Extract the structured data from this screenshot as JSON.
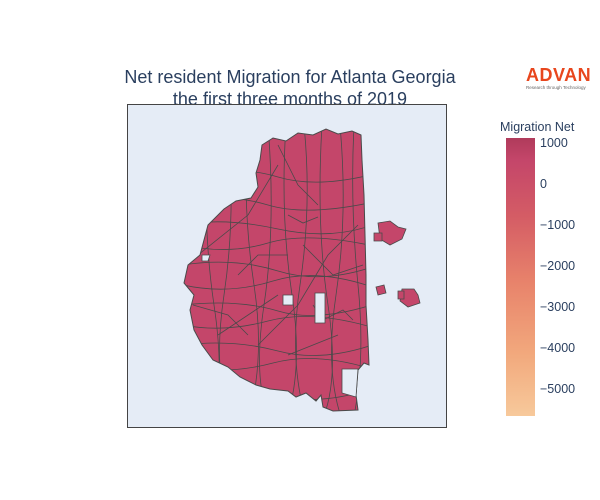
{
  "title": {
    "line1": "Net resident Migration for Atlanta Georgia",
    "line2": "the first three months of 2019"
  },
  "logo": {
    "name": "ADVAN",
    "tagline": "Research through Technology",
    "color": "#e8461d"
  },
  "colorbar": {
    "title": "Migration Net",
    "ticks": [
      "1000",
      "0",
      "−1000",
      "−2000",
      "−3000",
      "−4000",
      "−5000"
    ],
    "range": [
      -5600,
      1100
    ],
    "colors": [
      "#b03b5b",
      "#c4466a",
      "#d45c65",
      "#e8836b",
      "#f2a97d",
      "#f7c99b"
    ]
  },
  "map": {
    "fill_color": "#c4466a",
    "border_color": "#4a4a4a",
    "background_color": "#e5ecf6"
  }
}
